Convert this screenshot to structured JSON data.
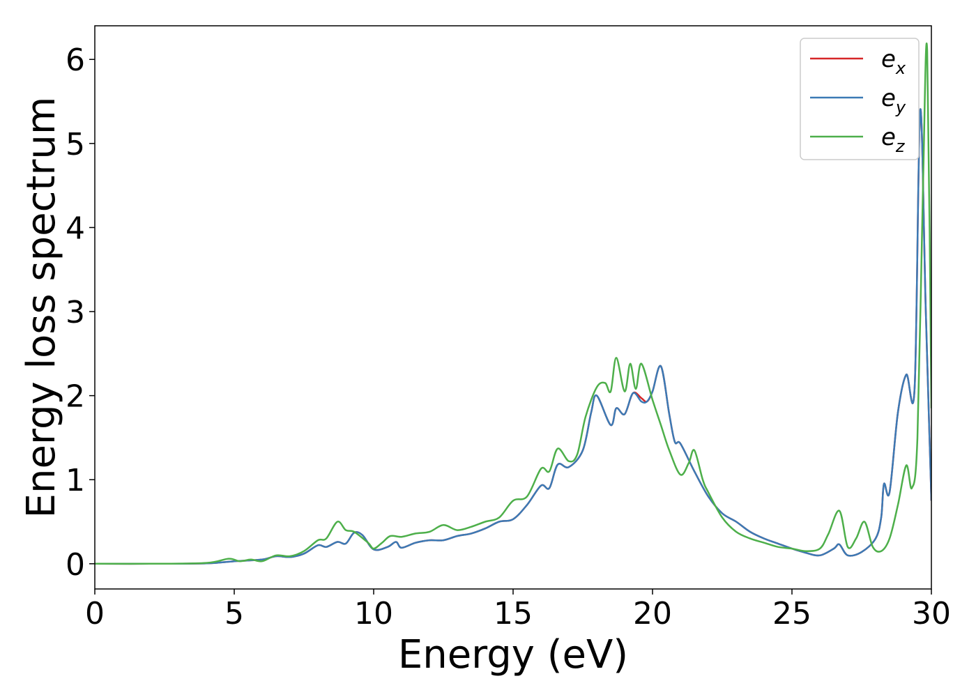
{
  "chart_data": {
    "type": "line",
    "title": "",
    "xlabel": "Energy (eV)",
    "ylabel": "Energy loss spectrum",
    "xlim": [
      0,
      30
    ],
    "ylim": [
      -0.3,
      6.4
    ],
    "xticks": [
      "0",
      "5",
      "10",
      "15",
      "20",
      "25",
      "30"
    ],
    "yticks": [
      "0",
      "1",
      "2",
      "3",
      "4",
      "5",
      "6"
    ],
    "grid": false,
    "legend_position": "top-right",
    "series": [
      {
        "name": "e_x",
        "name_base": "e",
        "name_sub": "x",
        "color": "#d62728",
        "points": [
          [
            0,
            0
          ],
          [
            2,
            0
          ],
          [
            4,
            0.005
          ],
          [
            5,
            0.03
          ],
          [
            6,
            0.05
          ],
          [
            6.5,
            0.09
          ],
          [
            7,
            0.08
          ],
          [
            7.5,
            0.12
          ],
          [
            8,
            0.22
          ],
          [
            8.3,
            0.2
          ],
          [
            8.7,
            0.26
          ],
          [
            9,
            0.24
          ],
          [
            9.3,
            0.37
          ],
          [
            9.6,
            0.34
          ],
          [
            10,
            0.17
          ],
          [
            10.5,
            0.2
          ],
          [
            10.8,
            0.26
          ],
          [
            11,
            0.19
          ],
          [
            11.5,
            0.25
          ],
          [
            12,
            0.28
          ],
          [
            12.5,
            0.28
          ],
          [
            13,
            0.33
          ],
          [
            13.5,
            0.36
          ],
          [
            14,
            0.42
          ],
          [
            14.5,
            0.5
          ],
          [
            15,
            0.53
          ],
          [
            15.5,
            0.7
          ],
          [
            16,
            0.93
          ],
          [
            16.3,
            0.9
          ],
          [
            16.6,
            1.18
          ],
          [
            17,
            1.15
          ],
          [
            17.5,
            1.35
          ],
          [
            17.8,
            1.8
          ],
          [
            18,
            2.0
          ],
          [
            18.5,
            1.65
          ],
          [
            18.7,
            1.85
          ],
          [
            19,
            1.78
          ],
          [
            19.3,
            2.03
          ],
          [
            19.6,
            1.97
          ],
          [
            19.8,
            1.93
          ],
          [
            20,
            2.05
          ],
          [
            20.3,
            2.35
          ],
          [
            20.6,
            1.78
          ],
          [
            20.8,
            1.45
          ],
          [
            21,
            1.43
          ],
          [
            21.5,
            1.1
          ],
          [
            22,
            0.8
          ],
          [
            22.5,
            0.6
          ],
          [
            23,
            0.5
          ],
          [
            23.5,
            0.38
          ],
          [
            24,
            0.3
          ],
          [
            24.5,
            0.24
          ],
          [
            25,
            0.18
          ],
          [
            25.5,
            0.13
          ],
          [
            26,
            0.1
          ],
          [
            26.5,
            0.18
          ],
          [
            26.7,
            0.23
          ],
          [
            27,
            0.1
          ],
          [
            27.5,
            0.14
          ],
          [
            28,
            0.3
          ],
          [
            28.2,
            0.55
          ],
          [
            28.3,
            0.95
          ],
          [
            28.5,
            0.85
          ],
          [
            28.8,
            1.8
          ],
          [
            29.1,
            2.25
          ],
          [
            29.4,
            2.1
          ],
          [
            29.6,
            5.4
          ],
          [
            29.8,
            3.0
          ],
          [
            30,
            0.75
          ]
        ]
      },
      {
        "name": "e_y",
        "name_base": "e",
        "name_sub": "y",
        "color": "#3b7ab5",
        "points": [
          [
            0,
            0
          ],
          [
            2,
            0
          ],
          [
            4,
            0.005
          ],
          [
            5,
            0.03
          ],
          [
            6,
            0.05
          ],
          [
            6.5,
            0.09
          ],
          [
            7,
            0.08
          ],
          [
            7.5,
            0.12
          ],
          [
            8,
            0.22
          ],
          [
            8.3,
            0.2
          ],
          [
            8.7,
            0.26
          ],
          [
            9,
            0.24
          ],
          [
            9.3,
            0.37
          ],
          [
            9.6,
            0.34
          ],
          [
            10,
            0.17
          ],
          [
            10.5,
            0.2
          ],
          [
            10.8,
            0.26
          ],
          [
            11,
            0.19
          ],
          [
            11.5,
            0.25
          ],
          [
            12,
            0.28
          ],
          [
            12.5,
            0.28
          ],
          [
            13,
            0.33
          ],
          [
            13.5,
            0.36
          ],
          [
            14,
            0.42
          ],
          [
            14.5,
            0.5
          ],
          [
            15,
            0.53
          ],
          [
            15.5,
            0.7
          ],
          [
            16,
            0.93
          ],
          [
            16.3,
            0.9
          ],
          [
            16.6,
            1.18
          ],
          [
            17,
            1.15
          ],
          [
            17.5,
            1.35
          ],
          [
            17.8,
            1.8
          ],
          [
            18,
            2.0
          ],
          [
            18.5,
            1.65
          ],
          [
            18.7,
            1.85
          ],
          [
            19,
            1.78
          ],
          [
            19.3,
            2.03
          ],
          [
            19.6,
            1.93
          ],
          [
            19.8,
            1.93
          ],
          [
            20,
            2.05
          ],
          [
            20.3,
            2.35
          ],
          [
            20.6,
            1.78
          ],
          [
            20.8,
            1.45
          ],
          [
            21,
            1.43
          ],
          [
            21.5,
            1.1
          ],
          [
            22,
            0.8
          ],
          [
            22.5,
            0.6
          ],
          [
            23,
            0.5
          ],
          [
            23.5,
            0.38
          ],
          [
            24,
            0.3
          ],
          [
            24.5,
            0.24
          ],
          [
            25,
            0.18
          ],
          [
            25.5,
            0.13
          ],
          [
            26,
            0.1
          ],
          [
            26.5,
            0.18
          ],
          [
            26.7,
            0.23
          ],
          [
            27,
            0.1
          ],
          [
            27.5,
            0.14
          ],
          [
            28,
            0.3
          ],
          [
            28.2,
            0.55
          ],
          [
            28.3,
            0.95
          ],
          [
            28.5,
            0.85
          ],
          [
            28.8,
            1.8
          ],
          [
            29.1,
            2.25
          ],
          [
            29.4,
            2.1
          ],
          [
            29.6,
            5.4
          ],
          [
            29.8,
            3.0
          ],
          [
            30,
            0.75
          ]
        ]
      },
      {
        "name": "e_z",
        "name_base": "e",
        "name_sub": "z",
        "color": "#4daf4a",
        "points": [
          [
            0,
            0
          ],
          [
            2,
            0
          ],
          [
            4,
            0.01
          ],
          [
            4.8,
            0.06
          ],
          [
            5.2,
            0.03
          ],
          [
            5.6,
            0.05
          ],
          [
            6,
            0.03
          ],
          [
            6.5,
            0.1
          ],
          [
            7,
            0.09
          ],
          [
            7.5,
            0.15
          ],
          [
            8,
            0.28
          ],
          [
            8.3,
            0.3
          ],
          [
            8.7,
            0.5
          ],
          [
            9,
            0.4
          ],
          [
            9.3,
            0.38
          ],
          [
            9.8,
            0.25
          ],
          [
            10,
            0.18
          ],
          [
            10.3,
            0.25
          ],
          [
            10.6,
            0.33
          ],
          [
            11,
            0.32
          ],
          [
            11.5,
            0.36
          ],
          [
            12,
            0.38
          ],
          [
            12.5,
            0.46
          ],
          [
            13,
            0.4
          ],
          [
            13.5,
            0.44
          ],
          [
            14,
            0.5
          ],
          [
            14.5,
            0.55
          ],
          [
            15,
            0.75
          ],
          [
            15.5,
            0.8
          ],
          [
            16,
            1.13
          ],
          [
            16.3,
            1.1
          ],
          [
            16.6,
            1.37
          ],
          [
            17,
            1.22
          ],
          [
            17.3,
            1.3
          ],
          [
            17.6,
            1.75
          ],
          [
            18,
            2.1
          ],
          [
            18.3,
            2.15
          ],
          [
            18.5,
            2.05
          ],
          [
            18.7,
            2.45
          ],
          [
            19,
            2.05
          ],
          [
            19.2,
            2.38
          ],
          [
            19.4,
            2.08
          ],
          [
            19.6,
            2.38
          ],
          [
            20,
            1.95
          ],
          [
            20.3,
            1.65
          ],
          [
            20.6,
            1.35
          ],
          [
            21,
            1.06
          ],
          [
            21.3,
            1.2
          ],
          [
            21.5,
            1.35
          ],
          [
            21.8,
            1.0
          ],
          [
            22,
            0.85
          ],
          [
            22.5,
            0.55
          ],
          [
            23,
            0.38
          ],
          [
            23.5,
            0.3
          ],
          [
            24,
            0.25
          ],
          [
            24.5,
            0.2
          ],
          [
            25,
            0.18
          ],
          [
            25.5,
            0.15
          ],
          [
            26,
            0.18
          ],
          [
            26.3,
            0.35
          ],
          [
            26.7,
            0.63
          ],
          [
            27,
            0.2
          ],
          [
            27.3,
            0.3
          ],
          [
            27.6,
            0.5
          ],
          [
            27.9,
            0.2
          ],
          [
            28.2,
            0.15
          ],
          [
            28.5,
            0.3
          ],
          [
            28.8,
            0.7
          ],
          [
            29.1,
            1.17
          ],
          [
            29.3,
            0.9
          ],
          [
            29.5,
            1.5
          ],
          [
            29.7,
            4.5
          ],
          [
            29.85,
            6.1
          ],
          [
            30,
            1.85
          ]
        ]
      }
    ]
  }
}
